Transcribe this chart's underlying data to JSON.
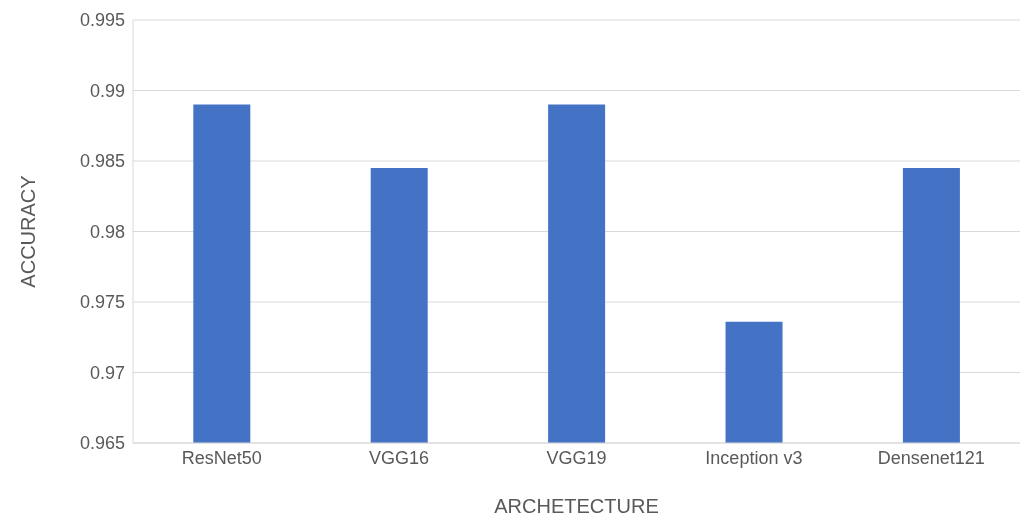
{
  "chart_data": {
    "type": "bar",
    "xlabel": "ARCHETECTURE",
    "ylabel": "ACCURACY",
    "categories": [
      "ResNet50",
      "VGG16",
      "VGG19",
      "Inception v3",
      "Densenet121"
    ],
    "values": [
      0.989,
      0.9845,
      0.989,
      0.9736,
      0.9845
    ],
    "color": "#4472c4",
    "ylim": [
      0.965,
      0.995
    ],
    "yticks": [
      0.965,
      0.97,
      0.975,
      0.98,
      0.985,
      0.99,
      0.995
    ],
    "grid": "y",
    "legend": false
  }
}
